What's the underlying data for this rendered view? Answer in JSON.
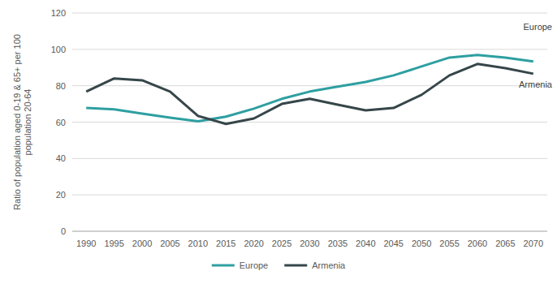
{
  "chart_data": {
    "type": "line",
    "y_label": "Ratio of population aged 0-19 & 65+ per 100 population 20-64",
    "categories": [
      "1990",
      "1995",
      "2000",
      "2005",
      "2010",
      "2015",
      "2020",
      "2025",
      "2030",
      "2035",
      "2040",
      "2045",
      "2050",
      "2055",
      "2060",
      "2065",
      "2070"
    ],
    "series": [
      {
        "name": "Europe",
        "color": "#2e9fa1",
        "values": [
          67.8,
          67,
          64.7,
          62.5,
          60.4,
          63,
          67.4,
          72.8,
          76.8,
          79.5,
          82.1,
          85.7,
          90.6,
          95.5,
          96.9,
          95.5,
          93.3
        ]
      },
      {
        "name": "Armenia",
        "color": "#36464a",
        "values": [
          76.8,
          84,
          83,
          76.8,
          63.4,
          59,
          62,
          70,
          72.8,
          69.6,
          66.5,
          67.8,
          75,
          85.7,
          92,
          89.7,
          86.6
        ]
      }
    ],
    "ylim": [
      0,
      120
    ],
    "yticks": [
      0,
      20,
      40,
      60,
      80,
      100,
      120
    ],
    "grid": true,
    "legend": "bottom"
  }
}
